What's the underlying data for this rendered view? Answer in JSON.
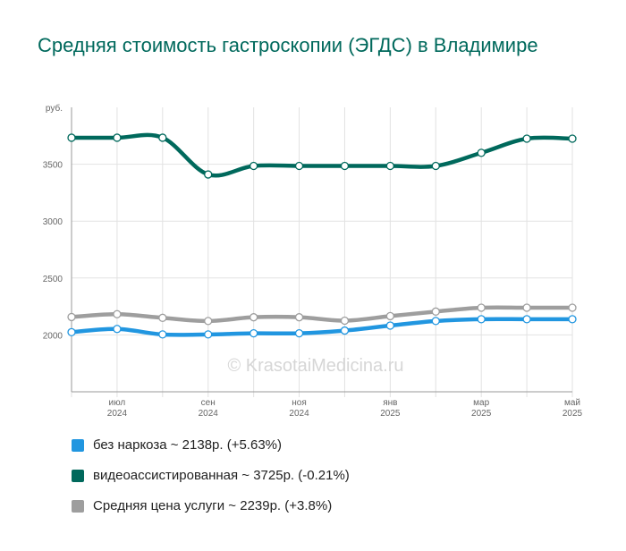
{
  "chart_data": {
    "type": "line",
    "title": "Средняя стоимость гастроскопии (ЭГДС) в Владимире",
    "ylabel": "руб.",
    "ylim": [
      1500,
      4000
    ],
    "yticks": [
      2000,
      2500,
      3000,
      3500
    ],
    "x_ticks": [
      {
        "month": "июл",
        "year": "2024",
        "index": 1
      },
      {
        "month": "сен",
        "year": "2024",
        "index": 3
      },
      {
        "month": "ноя",
        "year": "2024",
        "index": 5
      },
      {
        "month": "янв",
        "year": "2025",
        "index": 7
      },
      {
        "month": "мар",
        "year": "2025",
        "index": 9
      },
      {
        "month": "май",
        "year": "2025",
        "index": 11
      }
    ],
    "points_count": 12,
    "grid": true,
    "legend_position": "bottom-left",
    "watermark": "© KrasotaiMedicina.ru",
    "series": [
      {
        "name": "Средняя цена услуги",
        "legend": "Средняя цена услуги ~ 2239р. (+3.8%)",
        "color": "#9e9e9e",
        "values": [
          2157,
          2182,
          2150,
          2122,
          2155,
          2155,
          2125,
          2165,
          2205,
          2239,
          2239,
          2239
        ]
      },
      {
        "name": "без наркоза",
        "legend": "без наркоза ~ 2138р. (+5.63%)",
        "color": "#2196e0",
        "values": [
          2024,
          2052,
          2004,
          2004,
          2014,
          2014,
          2038,
          2082,
          2122,
          2138,
          2138,
          2138
        ]
      },
      {
        "name": "видеоассистированная",
        "legend": "видеоассистированная ~ 3725р. (-0.21%)",
        "color": "#00695c",
        "values": [
          3733,
          3733,
          3733,
          3410,
          3485,
          3485,
          3485,
          3485,
          3485,
          3600,
          3725,
          3725
        ]
      }
    ]
  }
}
